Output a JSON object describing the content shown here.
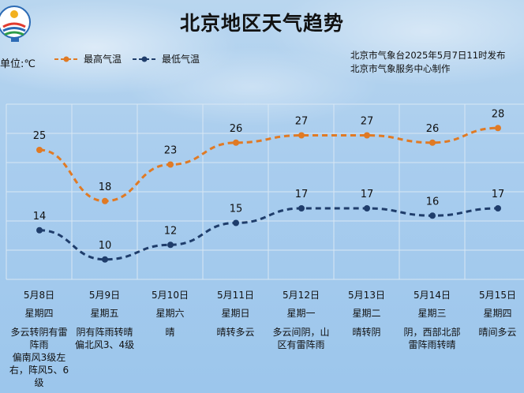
{
  "header": {
    "title": "北京地区天气趋势",
    "unit_label": "单位:℃",
    "issuer_line1": "北京市气象台2025年5月7日11时发布",
    "issuer_line2": "北京市气象服务中心制作"
  },
  "legend": {
    "high": "最高气温",
    "low": "最低气温"
  },
  "colors": {
    "high": "#e07a24",
    "low": "#1f3d6b",
    "grid": "#d8e7f4"
  },
  "chart_data": {
    "type": "line",
    "categories": [
      "5月8日",
      "5月9日",
      "5月10日",
      "5月11日",
      "5月12日",
      "5月13日",
      "5月14日",
      "5月15日"
    ],
    "weekdays": [
      "星期四",
      "星期五",
      "星期六",
      "星期日",
      "星期一",
      "星期二",
      "星期三",
      "星期四"
    ],
    "series": [
      {
        "name": "最高气温",
        "values": [
          25,
          18,
          23,
          26,
          27,
          27,
          26,
          28
        ]
      },
      {
        "name": "最低气温",
        "values": [
          14,
          10,
          12,
          15,
          17,
          17,
          16,
          17
        ]
      }
    ],
    "line_style": "dashed",
    "grid": true,
    "ylim": [
      6,
      34
    ]
  },
  "descriptions": [
    "多云转阴有雷\n阵雨\n偏南风3级左\n右，阵风5、6\n级",
    "阴有阵雨转晴\n偏北风3、4级",
    "晴",
    "晴转多云",
    "多云间阴，山\n区有雷阵雨",
    "晴转阴",
    "阴，西部北部\n雷阵雨转晴",
    "晴间多云"
  ]
}
